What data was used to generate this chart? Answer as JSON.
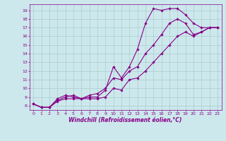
{
  "xlabel": "Windchill (Refroidissement éolien,°C)",
  "background_color": "#cce8ec",
  "line_color": "#880088",
  "grid_color": "#aacccc",
  "xlim": [
    -0.5,
    23.5
  ],
  "ylim": [
    7.5,
    19.7
  ],
  "xticks": [
    0,
    1,
    2,
    3,
    4,
    5,
    6,
    7,
    8,
    9,
    10,
    11,
    12,
    13,
    14,
    15,
    16,
    17,
    18,
    19,
    20,
    21,
    22,
    23
  ],
  "yticks": [
    8,
    9,
    10,
    11,
    12,
    13,
    14,
    15,
    16,
    17,
    18,
    19
  ],
  "lines": [
    {
      "x": [
        0,
        1,
        2,
        3,
        4,
        5,
        6,
        7,
        8,
        9,
        10,
        11,
        12,
        13,
        14,
        15,
        16,
        17,
        18,
        19,
        20,
        21,
        22,
        23
      ],
      "y": [
        8.2,
        7.8,
        7.8,
        8.8,
        9.2,
        9.0,
        8.8,
        9.0,
        9.0,
        9.8,
        12.5,
        11.2,
        12.5,
        14.5,
        17.5,
        19.2,
        19.0,
        19.2,
        19.2,
        18.5,
        17.5,
        17.0,
        17.0,
        17.0
      ]
    },
    {
      "x": [
        0,
        1,
        2,
        3,
        4,
        5,
        6,
        7,
        8,
        9,
        10,
        11,
        12,
        13,
        14,
        15,
        16,
        17,
        18,
        19,
        20,
        21,
        22,
        23
      ],
      "y": [
        8.2,
        7.8,
        7.8,
        8.6,
        9.0,
        9.2,
        8.8,
        9.2,
        9.4,
        10.0,
        11.2,
        11.0,
        12.0,
        12.5,
        14.0,
        15.0,
        16.2,
        17.5,
        18.0,
        17.5,
        16.2,
        16.5,
        17.0,
        17.0
      ]
    },
    {
      "x": [
        0,
        1,
        2,
        3,
        4,
        5,
        6,
        7,
        8,
        9,
        10,
        11,
        12,
        13,
        14,
        15,
        16,
        17,
        18,
        19,
        20,
        21,
        22,
        23
      ],
      "y": [
        8.2,
        7.8,
        7.8,
        8.5,
        8.8,
        8.8,
        8.8,
        8.8,
        8.8,
        9.0,
        10.0,
        9.8,
        11.0,
        11.2,
        12.0,
        13.0,
        14.0,
        15.0,
        16.0,
        16.5,
        16.0,
        16.5,
        17.0,
        17.0
      ]
    }
  ],
  "xlabel_fontsize": 5.5,
  "tick_fontsize": 4.5,
  "linewidth": 0.8,
  "markersize": 1.8
}
